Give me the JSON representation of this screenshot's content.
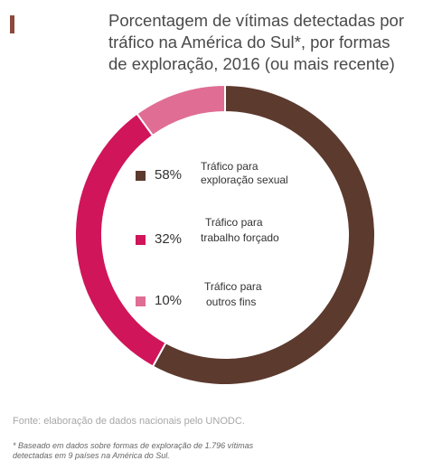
{
  "title": {
    "lines": [
      "Porcentagem de vítimas detectadas por",
      "tráfico na América do Sul*, por formas",
      "de exploração, 2016 (ou mais recente)"
    ]
  },
  "colors": {
    "marker": "#8b4a3c",
    "sexual": "#5c3a2e",
    "forced": "#d0155a",
    "other": "#e06d94"
  },
  "chart_data": {
    "type": "pie",
    "title": "Porcentagem de vítimas detectadas por tráfico na América do Sul*, por formas de exploração, 2016 (ou mais recente)",
    "donut": true,
    "legend_position": "center",
    "slices": [
      {
        "pct_label": "58%",
        "value": 58,
        "label_lines": [
          "Tráfico para",
          "exploração sexual"
        ],
        "color": "#5c3a2e"
      },
      {
        "pct_label": "32%",
        "value": 32,
        "label_lines": [
          "Tráfico para",
          "trabalho forçado"
        ],
        "color": "#d0155a"
      },
      {
        "pct_label": "10%",
        "value": 10,
        "label_lines": [
          "Tráfico para",
          "outros fins"
        ],
        "color": "#e06d94"
      }
    ]
  },
  "source": "Fonte: elaboração de dados nacionais pelo UNODC.",
  "footnote": {
    "lines": [
      "* Baseado em dados sobre formas de exploração de 1.796 vítimas",
      "detectadas em 9 países na América do Sul."
    ]
  }
}
